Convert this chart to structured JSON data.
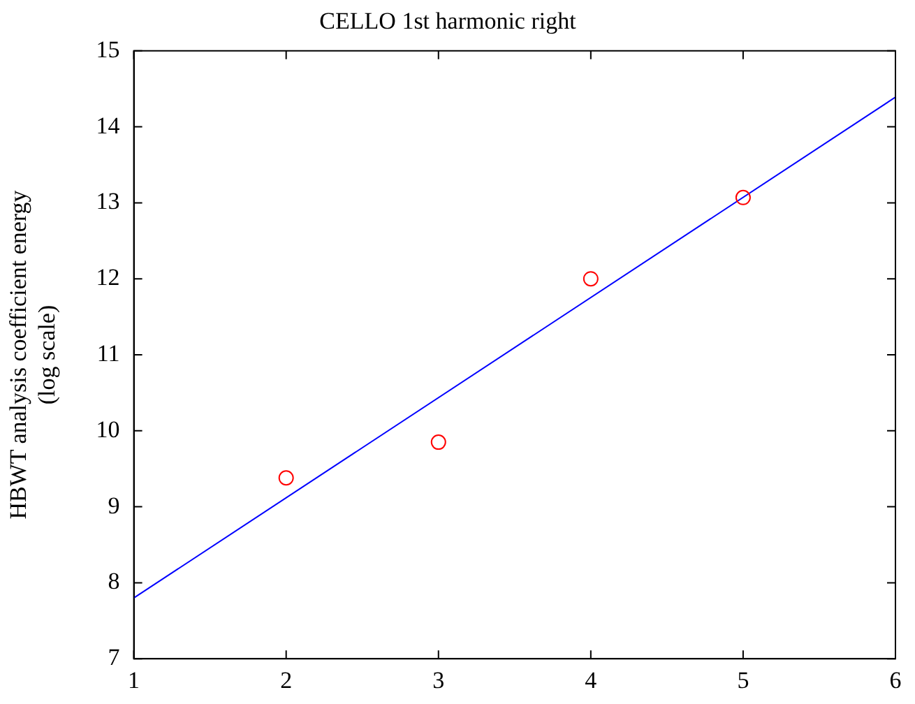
{
  "chart_data": {
    "type": "scatter",
    "title": "CELLO 1st harmonic right",
    "ylabel": "HBWT analysis coefficient energy\n(log scale)",
    "xlim": [
      1,
      6
    ],
    "xticks": [
      1,
      2,
      3,
      4,
      5,
      6
    ],
    "ylim": [
      7,
      15
    ],
    "yticks": [
      7,
      8,
      9,
      10,
      11,
      12,
      13,
      14,
      15
    ],
    "grid": false,
    "legend": false,
    "series": [
      {
        "type": "scatter",
        "color": "#ff0000",
        "marker": "circle",
        "x": [
          2,
          3,
          4,
          5
        ],
        "values": [
          9.38,
          9.85,
          12.0,
          13.07
        ]
      },
      {
        "type": "line",
        "color": "#0000ff",
        "marker": "none",
        "line_style": "solid",
        "x": [
          1,
          6
        ],
        "values": [
          7.8,
          14.39
        ]
      }
    ]
  }
}
